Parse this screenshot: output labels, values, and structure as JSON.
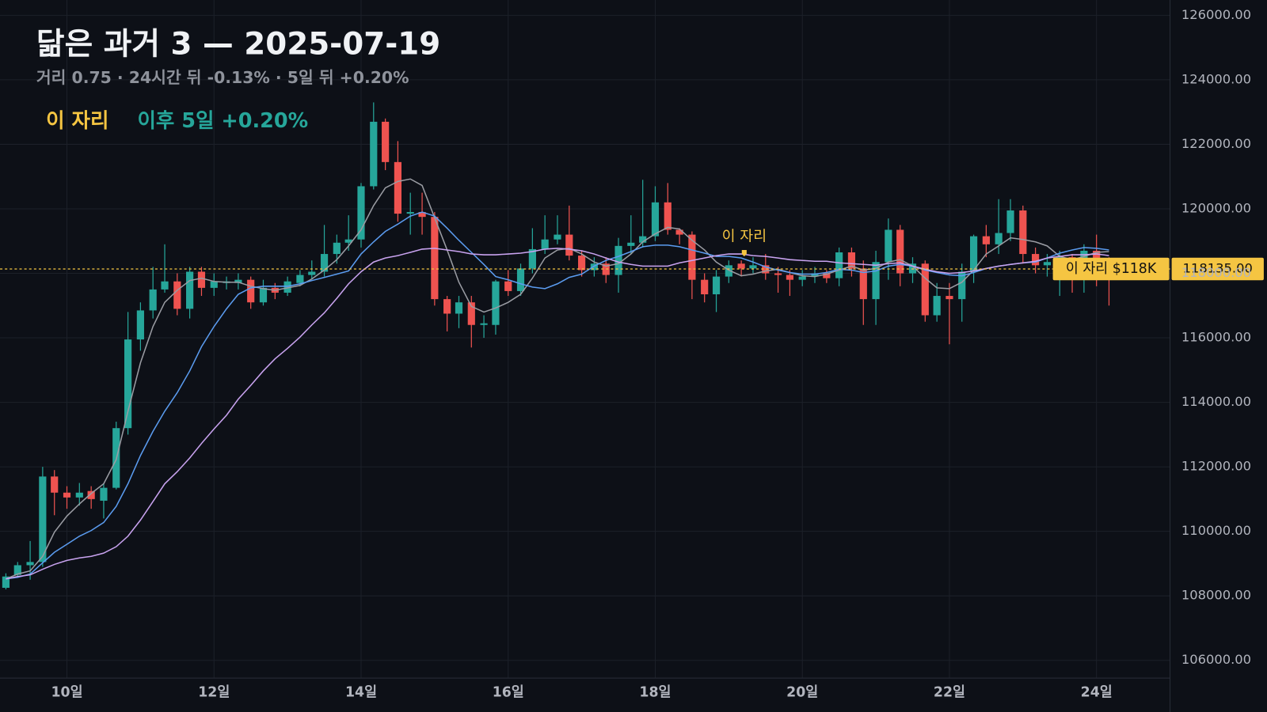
{
  "chart_data": {
    "type": "candlestick",
    "title": "닮은 과거 3 — 2025-07-19",
    "subtitle": "거리 0.75 · 24시간 뒤 -0.13% · 5일 뒤 +0.20%",
    "legend": [
      {
        "text": "이 자리",
        "color": "#f5c542"
      },
      {
        "text": "이후 5일 +0.20%",
        "color": "#26a69a"
      }
    ],
    "up_color": "#26a69a",
    "down_color": "#ef5350",
    "x": [
      9.17,
      9.33,
      9.5,
      9.67,
      9.83,
      10,
      10.17,
      10.33,
      10.5,
      10.67,
      10.83,
      11,
      11.17,
      11.33,
      11.5,
      11.67,
      11.83,
      12,
      12.17,
      12.33,
      12.5,
      12.67,
      12.83,
      13,
      13.17,
      13.33,
      13.5,
      13.67,
      13.83,
      14,
      14.17,
      14.33,
      14.5,
      14.67,
      14.83,
      15,
      15.17,
      15.33,
      15.5,
      15.67,
      15.83,
      16,
      16.17,
      16.33,
      16.5,
      16.67,
      16.83,
      17,
      17.17,
      17.33,
      17.5,
      17.67,
      17.83,
      18,
      18.17,
      18.33,
      18.5,
      18.67,
      18.83,
      19,
      19.17,
      19.33,
      19.5,
      19.67,
      19.83,
      20,
      20.17,
      20.33,
      20.5,
      20.67,
      20.83,
      21,
      21.17,
      21.33,
      21.5,
      21.67,
      21.83,
      22,
      22.17,
      22.33,
      22.5,
      22.67,
      22.83,
      23,
      23.17,
      23.33,
      23.5,
      23.67,
      23.83,
      24,
      24.17
    ],
    "open": [
      108250,
      108650,
      108950,
      109050,
      111700,
      111200,
      111050,
      111250,
      110950,
      111350,
      113200,
      115950,
      116850,
      117500,
      117750,
      116900,
      118050,
      117550,
      117700,
      117700,
      117800,
      117100,
      117550,
      117400,
      117700,
      117950,
      118050,
      118600,
      118950,
      119050,
      120700,
      122700,
      121450,
      119850,
      119900,
      119750,
      117200,
      116750,
      117100,
      116400,
      116400,
      117750,
      117450,
      118150,
      118750,
      119050,
      119200,
      118550,
      118100,
      118300,
      117950,
      118850,
      118950,
      119150,
      120200,
      119350,
      119200,
      117800,
      117350,
      117900,
      118300,
      118150,
      118250,
      118000,
      117950,
      117800,
      117900,
      118000,
      117850,
      118650,
      118150,
      117200,
      118350,
      119350,
      118000,
      118300,
      116700,
      117300,
      117200,
      118050,
      119150,
      118900,
      119250,
      119950,
      118600,
      118250,
      118300,
      118500,
      118450,
      118700,
      118450
    ],
    "high": [
      108700,
      109050,
      109700,
      112000,
      111900,
      111400,
      111500,
      111400,
      111500,
      113400,
      116800,
      117100,
      118200,
      118900,
      118000,
      118200,
      118200,
      118000,
      117900,
      118000,
      117900,
      117800,
      117700,
      117900,
      118100,
      118400,
      119500,
      119200,
      119800,
      120800,
      123300,
      122800,
      122100,
      120500,
      120500,
      119900,
      117300,
      117300,
      117300,
      116700,
      117800,
      118100,
      118300,
      119400,
      119800,
      119800,
      120100,
      118700,
      118500,
      118500,
      119100,
      119800,
      120900,
      120700,
      120800,
      119400,
      119300,
      118000,
      118100,
      118400,
      118400,
      118500,
      118600,
      118200,
      118100,
      118100,
      118200,
      118100,
      118800,
      118800,
      118400,
      118700,
      119700,
      119500,
      118500,
      118400,
      117700,
      117700,
      118300,
      119200,
      119500,
      120300,
      120300,
      120100,
      118800,
      118600,
      118700,
      118600,
      118900,
      119200,
      118500
    ],
    "low": [
      108200,
      108600,
      108500,
      108900,
      110500,
      110700,
      110800,
      110700,
      110400,
      111300,
      113000,
      115600,
      116600,
      117400,
      116700,
      116600,
      117300,
      117300,
      117500,
      117500,
      116900,
      117000,
      117200,
      117300,
      117600,
      117800,
      117900,
      118300,
      118700,
      118800,
      120600,
      121200,
      119600,
      119200,
      119200,
      117000,
      116200,
      116300,
      115700,
      116000,
      116100,
      117300,
      117300,
      118000,
      118600,
      118900,
      118400,
      117900,
      117900,
      117700,
      117400,
      118600,
      118800,
      119000,
      119200,
      118900,
      117200,
      117100,
      116800,
      117700,
      117900,
      118000,
      117800,
      117400,
      117300,
      117600,
      117700,
      117700,
      117600,
      117900,
      116400,
      116400,
      117800,
      117600,
      117700,
      116500,
      116500,
      115800,
      116500,
      117700,
      118500,
      118600,
      119000,
      118300,
      118000,
      117900,
      117300,
      117400,
      117400,
      117600,
      117000
    ],
    "close": [
      108600,
      108950,
      109050,
      111700,
      111200,
      111050,
      111200,
      111000,
      111350,
      113200,
      115950,
      116850,
      117500,
      117750,
      116900,
      118050,
      117550,
      117750,
      117750,
      117800,
      117100,
      117550,
      117400,
      117750,
      117950,
      118050,
      118600,
      118950,
      119050,
      120700,
      122700,
      121450,
      119850,
      119900,
      119750,
      117200,
      116750,
      117100,
      116400,
      116450,
      117750,
      117450,
      118150,
      118750,
      119050,
      119200,
      118550,
      118100,
      118300,
      117950,
      118850,
      118950,
      119150,
      120200,
      119350,
      119200,
      117800,
      117350,
      117900,
      118250,
      118150,
      118250,
      118000,
      117950,
      117800,
      117900,
      118000,
      117850,
      118650,
      118150,
      117200,
      118350,
      119350,
      118000,
      118300,
      116700,
      117300,
      117200,
      118050,
      119150,
      118900,
      119250,
      119950,
      118600,
      118250,
      118350,
      118500,
      118400,
      118700,
      118450,
      118150
    ],
    "lines": [
      {
        "color": "#9a9ca3",
        "values": [
          108525,
          108675,
          108775,
          109225,
          109975,
          110475,
          110850,
          111175,
          111475,
          112225,
          113725,
          115225,
          116350,
          117100,
          117475,
          117775,
          117850,
          117750,
          117725,
          117725,
          117600,
          117525,
          117475,
          117550,
          117625,
          117825,
          118100,
          118425,
          118850,
          119350,
          120100,
          120650,
          120850,
          120925,
          120725,
          119725,
          118725,
          117725,
          116975,
          116800,
          116925,
          117100,
          117350,
          117850,
          118475,
          118725,
          118775,
          118600,
          118350,
          118225,
          118300,
          118600,
          118975,
          119225,
          119425,
          119375,
          119025,
          118725,
          118350,
          118100,
          117925,
          117975,
          118075,
          118125,
          118025,
          117925,
          117900,
          117975,
          118100,
          118225,
          118100,
          118150,
          118350,
          118425,
          118225,
          117850,
          117550,
          117525,
          117725,
          118100,
          118600,
          118850,
          119100,
          119050,
          118975,
          118850,
          118525,
          118425,
          118525,
          118650,
          118675
        ]
      },
      {
        "color": "#5b9cf0",
        "values": [
          108525,
          108575,
          108675,
          109025,
          109350,
          109600,
          109850,
          110025,
          110275,
          110775,
          111475,
          112350,
          113100,
          113725,
          114300,
          114975,
          115725,
          116350,
          116900,
          117350,
          117550,
          117600,
          117600,
          117600,
          117675,
          117775,
          117875,
          117975,
          118075,
          118600,
          118975,
          119300,
          119525,
          119775,
          119900,
          119775,
          119400,
          119025,
          118650,
          118275,
          117900,
          117800,
          117675,
          117575,
          117525,
          117675,
          117875,
          117975,
          118225,
          118400,
          118525,
          118675,
          118825,
          118875,
          118875,
          118825,
          118725,
          118625,
          118525,
          118525,
          118475,
          118350,
          118200,
          118100,
          118025,
          117975,
          117975,
          118025,
          118125,
          118100,
          118025,
          118075,
          118225,
          118275,
          118225,
          118100,
          118025,
          117950,
          117925,
          118025,
          118150,
          118225,
          118275,
          118325,
          118350,
          118475,
          118625,
          118725,
          118800,
          118775,
          118725
        ]
      },
      {
        "color": "#c9a3f0",
        "values": [
          108525,
          108600,
          108650,
          108825,
          108975,
          109100,
          109175,
          109225,
          109325,
          109525,
          109850,
          110350,
          110925,
          111475,
          111850,
          112275,
          112725,
          113175,
          113600,
          114100,
          114525,
          114975,
          115350,
          115675,
          116025,
          116400,
          116775,
          117225,
          117675,
          118050,
          118350,
          118475,
          118550,
          118650,
          118750,
          118775,
          118725,
          118675,
          118600,
          118575,
          118575,
          118600,
          118625,
          118675,
          118750,
          118775,
          118750,
          118700,
          118600,
          118475,
          118350,
          118275,
          118225,
          118225,
          118225,
          118325,
          118400,
          118475,
          118550,
          118600,
          118600,
          118550,
          118525,
          118475,
          118425,
          118400,
          118375,
          118375,
          118325,
          118300,
          118275,
          118250,
          118300,
          118325,
          118225,
          118125,
          118050,
          118000,
          118025,
          118075,
          118150,
          118225,
          118275,
          118325,
          118375,
          118475,
          118525,
          118575,
          118575,
          118600,
          118550
        ]
      }
    ],
    "xlim": [
      9.09,
      25
    ],
    "xticks": [
      {
        "value": 10,
        "label": "10일"
      },
      {
        "value": 12,
        "label": "12일"
      },
      {
        "value": 14,
        "label": "14일"
      },
      {
        "value": 16,
        "label": "16일"
      },
      {
        "value": 18,
        "label": "18일"
      },
      {
        "value": 20,
        "label": "20일"
      },
      {
        "value": 22,
        "label": "22일"
      },
      {
        "value": 24,
        "label": "24일"
      }
    ],
    "ylim": [
      105450,
      126475
    ],
    "yticks": [
      {
        "value": 106000,
        "label": "106000.00"
      },
      {
        "value": 108000,
        "label": "108000.00"
      },
      {
        "value": 110000,
        "label": "110000.00"
      },
      {
        "value": 112000,
        "label": "112000.00"
      },
      {
        "value": 114000,
        "label": "114000.00"
      },
      {
        "value": 116000,
        "label": "116000.00"
      },
      {
        "value": 118000,
        "label": "118000.00"
      },
      {
        "value": 120000,
        "label": "120000.00"
      },
      {
        "value": 122000,
        "label": "122000.00"
      },
      {
        "value": 124000,
        "label": "124000.00"
      },
      {
        "value": 126000,
        "label": "126000.00"
      }
    ],
    "grid": true,
    "marker_line": {
      "value": 118135,
      "label": "118135.00",
      "tag": "이 자리 $118K",
      "color": "#f5c542"
    },
    "annotation": {
      "text": "이 자리",
      "x": 19.21,
      "y": 118600
    }
  }
}
